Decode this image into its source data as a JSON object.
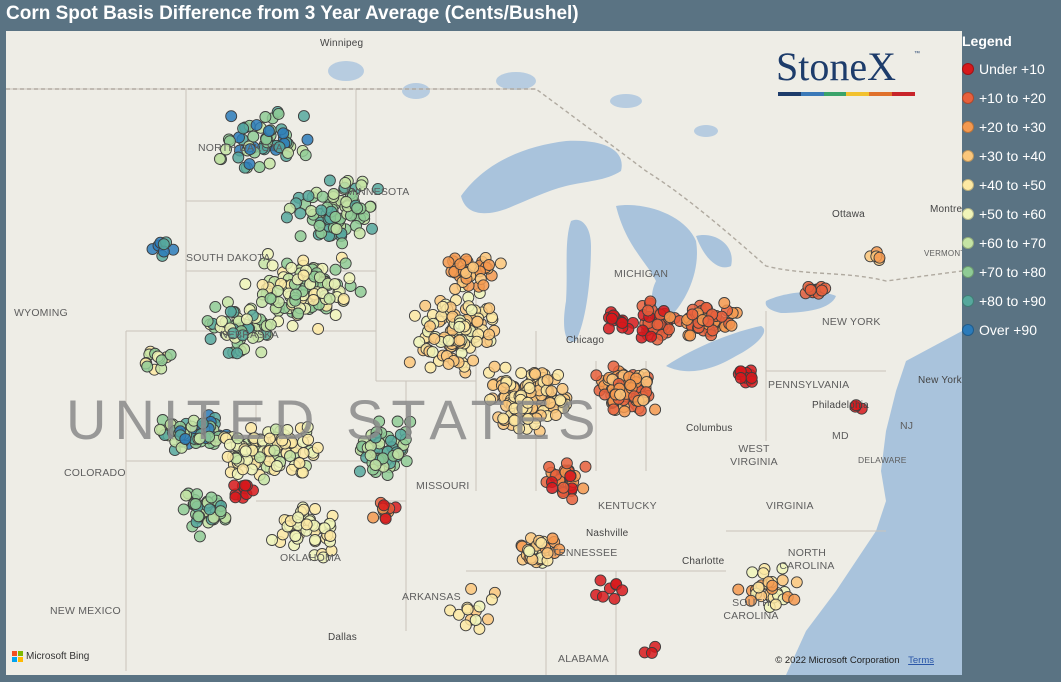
{
  "title": "Corn Spot Basis Difference from 3 Year Average (Cents/Bushel)",
  "legend": {
    "title": "Legend",
    "items": [
      {
        "label": "Under +10",
        "color": "#d7191c"
      },
      {
        "label": "+10 to +20",
        "color": "#e8603c"
      },
      {
        "label": "+20 to +30",
        "color": "#f4994f"
      },
      {
        "label": "+30 to +40",
        "color": "#fbc77b"
      },
      {
        "label": "+40 to +50",
        "color": "#fde9a3"
      },
      {
        "label": "+50 to +60",
        "color": "#f0f4b8"
      },
      {
        "label": "+60 to +70",
        "color": "#c5e4a4"
      },
      {
        "label": "+70 to +80",
        "color": "#8fcb95"
      },
      {
        "label": "+80 to +90",
        "color": "#56a89d"
      },
      {
        "label": "Over +90",
        "color": "#2b7bba"
      }
    ]
  },
  "logo": {
    "text": "StoneX",
    "tm": "™",
    "bar_colors": [
      "#1d3c6b",
      "#3a79b8",
      "#3aa36a",
      "#f2c12e",
      "#e0712b",
      "#c8242a"
    ]
  },
  "attribution": {
    "provider": "Microsoft Bing",
    "copyright": "© 2022 Microsoft Corporation",
    "terms": "Terms"
  },
  "map_labels": {
    "country": "UNITED STATES",
    "regions": [
      "NORTH DAKOTA",
      "MINNESOTA",
      "SOUTH DAKOTA",
      "WYOMING",
      "NEBRASKA",
      "COLORADO",
      "MISSOURI",
      "KENTUCKY",
      "OKLAHOMA",
      "NEW MEXICO",
      "ARKANSAS",
      "TENNESSEE",
      "ALABAMA",
      "WEST VIRGINIA",
      "VIRGINIA",
      "NORTH CAROLINA",
      "SOUTH CAROLINA",
      "PENNSYLVANIA",
      "NEW YORK",
      "MICHIGAN",
      "VERMONT",
      "DELAWARE",
      "MD",
      "NJ"
    ],
    "cities": [
      "Winnipeg",
      "Ottawa",
      "Montreal",
      "Chicago",
      "Columbus",
      "Philadelphia",
      "New York",
      "Nashville",
      "Charlotte",
      "Dallas"
    ]
  }
}
